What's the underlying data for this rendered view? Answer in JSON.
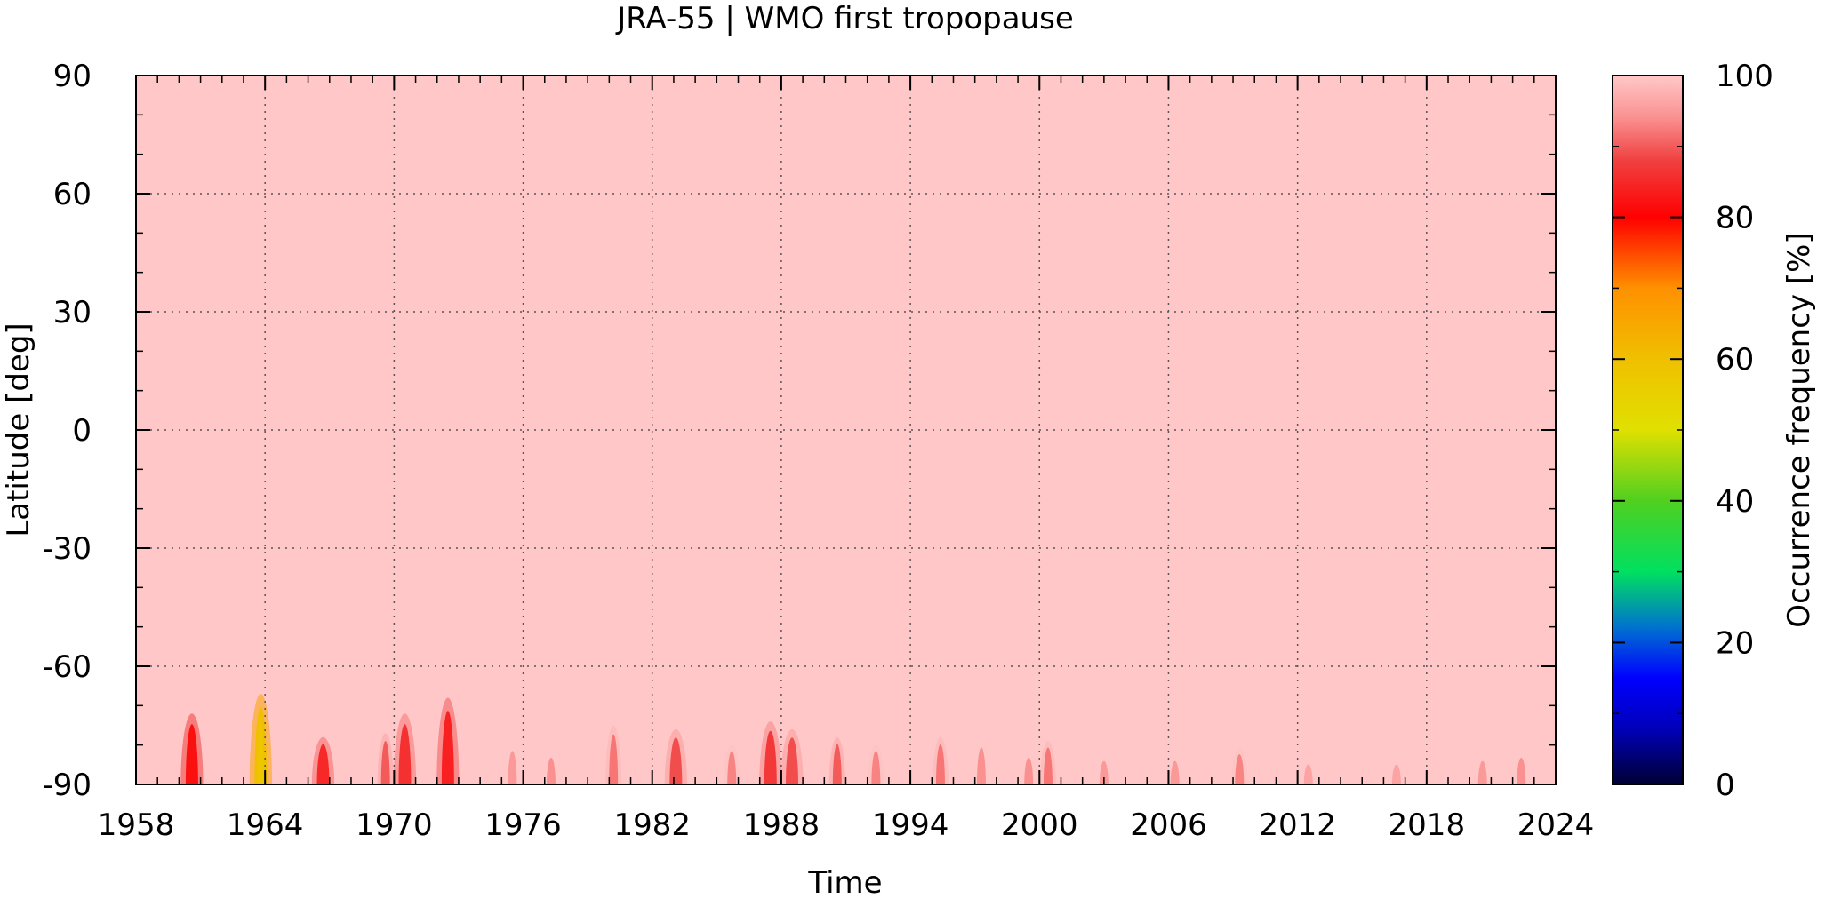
{
  "chart_data": {
    "type": "heatmap",
    "title": "JRA-55 | WMO first tropopause",
    "xlabel": "Time",
    "ylabel": "Latitude [deg]",
    "xlim": [
      1958,
      2024
    ],
    "ylim": [
      -90,
      90
    ],
    "x_ticks": [
      "1958",
      "1964",
      "1970",
      "1976",
      "1982",
      "1988",
      "1994",
      "2000",
      "2006",
      "2012",
      "2018",
      "2024"
    ],
    "y_ticks": [
      "90",
      "60",
      "30",
      "0",
      "-30",
      "-60",
      "-90"
    ],
    "grid": true,
    "colorbar": {
      "label": "Occurrence frequency [%]",
      "range": [
        0,
        100
      ],
      "ticks": [
        "0",
        "20",
        "40",
        "60",
        "80",
        "100"
      ]
    },
    "background_value": 100,
    "anomalies": [
      {
        "time": 1960.6,
        "lat_top": -72,
        "value": 82
      },
      {
        "time": 1963.8,
        "lat_top": -67,
        "value": 60
      },
      {
        "time": 1966.7,
        "lat_top": -78,
        "value": 85
      },
      {
        "time": 1969.6,
        "lat_top": -77,
        "value": 90
      },
      {
        "time": 1970.5,
        "lat_top": -72,
        "value": 86
      },
      {
        "time": 1972.5,
        "lat_top": -68,
        "value": 84
      },
      {
        "time": 1975.5,
        "lat_top": -80,
        "value": 95
      },
      {
        "time": 1977.3,
        "lat_top": -82,
        "value": 94
      },
      {
        "time": 1980.2,
        "lat_top": -75,
        "value": 92
      },
      {
        "time": 1983.1,
        "lat_top": -76,
        "value": 89
      },
      {
        "time": 1985.7,
        "lat_top": -80,
        "value": 93
      },
      {
        "time": 1987.5,
        "lat_top": -74,
        "value": 87
      },
      {
        "time": 1988.5,
        "lat_top": -76,
        "value": 89
      },
      {
        "time": 1990.6,
        "lat_top": -78,
        "value": 90
      },
      {
        "time": 1992.4,
        "lat_top": -80,
        "value": 93
      },
      {
        "time": 1995.4,
        "lat_top": -78,
        "value": 92
      },
      {
        "time": 1997.3,
        "lat_top": -79,
        "value": 94
      },
      {
        "time": 1999.5,
        "lat_top": -82,
        "value": 94
      },
      {
        "time": 2000.4,
        "lat_top": -79,
        "value": 92
      },
      {
        "time": 2003.0,
        "lat_top": -83,
        "value": 95
      },
      {
        "time": 2006.3,
        "lat_top": -83,
        "value": 95
      },
      {
        "time": 2009.3,
        "lat_top": -81,
        "value": 93
      },
      {
        "time": 2012.5,
        "lat_top": -84,
        "value": 96
      },
      {
        "time": 2016.6,
        "lat_top": -84,
        "value": 96
      },
      {
        "time": 2020.6,
        "lat_top": -83,
        "value": 95
      },
      {
        "time": 2022.4,
        "lat_top": -82,
        "value": 94
      }
    ]
  }
}
